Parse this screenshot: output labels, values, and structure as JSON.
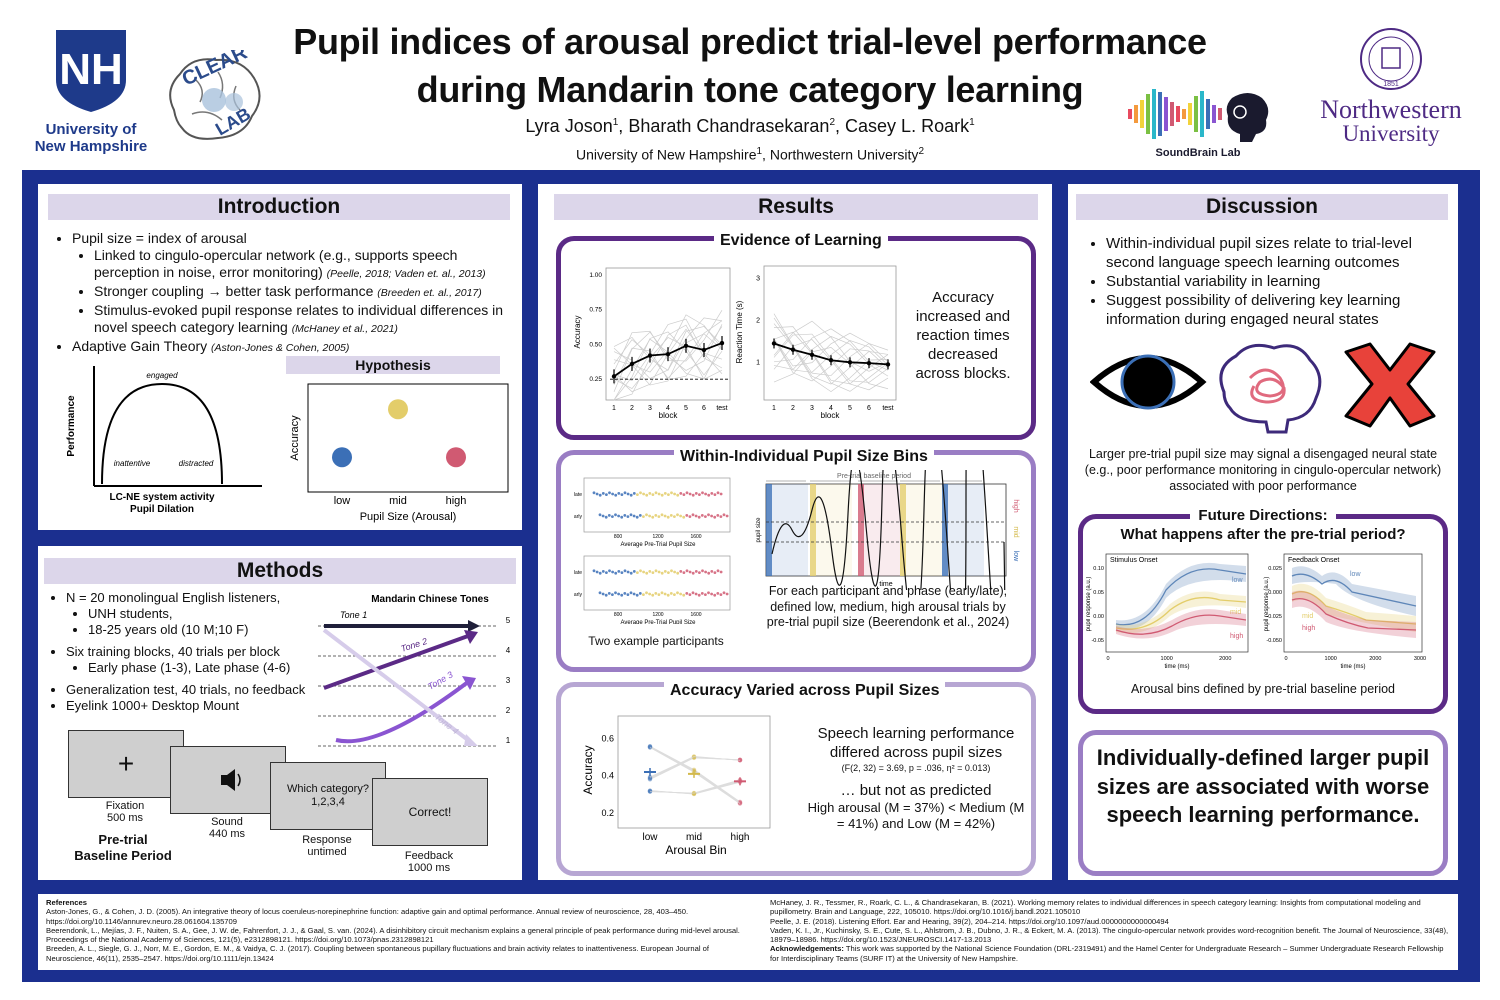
{
  "header": {
    "title_line1": "Pupil indices of arousal predict trial-level performance",
    "title_line2": "during Mandarin tone category learning",
    "authors": [
      {
        "name": "Lyra Joson",
        "sup": "1"
      },
      {
        "name": "Bharath Chandrasekaran",
        "sup": "2"
      },
      {
        "name": "Casey L. Roark",
        "sup": "1"
      }
    ],
    "affiliations": [
      {
        "name": "University of New Hampshire",
        "sup": "1"
      },
      {
        "name": "Northwestern University",
        "sup": "2"
      }
    ],
    "logos": {
      "unh_mark": "NH",
      "unh_name1": "University of",
      "unh_name2": "New Hampshire",
      "clear_lab1": "CLEAR",
      "clear_lab2": "LAB",
      "soundbrain": "SoundBrain Lab",
      "nu_name1": "Northwestern",
      "nu_name2": "University",
      "nu_seal_year": "1851",
      "nu_seal_text": "NORTHWESTERN UNIVERSITY"
    }
  },
  "intro": {
    "title": "Introduction",
    "b1": "Pupil size = index of arousal",
    "b1a": "Linked to cingulo-opercular network (e.g., supports speech perception in noise, error monitoring)",
    "b1a_cite": "(Peelle, 2018; Vaden et. al., 2013)",
    "b1b_pre": "Stronger coupling",
    "b1b_arrow": "→",
    "b1b_post": "better task performance",
    "b1b_cite": "(Breeden et. al., 2017)",
    "b1c": "Stimulus-evoked pupil response relates to individual differences in novel speech category learning",
    "b1c_cite": "(McHaney et al., 2021)",
    "b2": "Adaptive Gain Theory",
    "b2_cite": "(Aston-Jones & Cohen, 2005)",
    "agt": {
      "y": "Performance",
      "x1": "LC-NE system activity",
      "x2": "Pupil Dilation",
      "engaged": "engaged",
      "inattentive": "inattentive",
      "distracted": "distracted"
    },
    "hyp": {
      "title": "Hypothesis",
      "y": "Accuracy",
      "x": "Pupil Size (Arousal)",
      "cats": [
        "low",
        "mid",
        "high"
      ],
      "colors": [
        "#3b6fb6",
        "#e3cd6a",
        "#d05a72"
      ],
      "values": [
        0.3,
        0.8,
        0.3
      ]
    }
  },
  "methods": {
    "title": "Methods",
    "b1": "N = 20 monolingual English listeners,",
    "b1a": "UNH students,",
    "b1b": "18-25 years old (10 M;10 F)",
    "b2": "Six training blocks, 40 trials per block",
    "b2a": "Early phase (1-3), Late phase (4-6)",
    "b3": "Generalization test, 40 trials, no feedback",
    "b4": "Eyelink 1000+ Desktop Mount",
    "tones": {
      "title": "Mandarin Chinese Tones",
      "t1": "Tone 1",
      "t2": "Tone 2",
      "t3": "Tone 3",
      "t4": "Tone 4",
      "levels": [
        "5",
        "4",
        "3",
        "2",
        "1"
      ]
    },
    "trial": {
      "fix_sym": "+",
      "fix_label": "Fixation",
      "fix_time": "500 ms",
      "sound_label": "Sound",
      "sound_time": "440 ms",
      "resp_text1": "Which category?",
      "resp_text2": "1,2,3,4",
      "resp_label": "Response",
      "resp_time": "untimed",
      "fb_text": "Correct!",
      "fb_label": "Feedback",
      "fb_time": "1000 ms",
      "baseline1": "Pre-trial",
      "baseline2": "Baseline Period"
    }
  },
  "results": {
    "title": "Results",
    "learning": {
      "title": "Evidence of Learning",
      "text": "Accuracy increased and reaction times decreased across blocks.",
      "acc": {
        "ylabel": "Accuracy",
        "xlabel": "block",
        "yticks": [
          "0.25",
          "0.50",
          "0.75",
          "1.00"
        ],
        "xticks": [
          "1",
          "2",
          "3",
          "4",
          "5",
          "6",
          "test"
        ],
        "values": [
          0.27,
          0.36,
          0.42,
          0.43,
          0.49,
          0.46,
          0.51
        ],
        "chance": 0.25
      },
      "rt": {
        "ylabel": "Reaction Time (s)",
        "xlabel": "block",
        "yticks": [
          "1",
          "2",
          "3"
        ],
        "xticks": [
          "1",
          "2",
          "3",
          "4",
          "5",
          "6",
          "test"
        ],
        "values": [
          1.45,
          1.3,
          1.18,
          1.05,
          1.0,
          0.98,
          0.95
        ]
      }
    },
    "bins": {
      "title": "Within-Individual Pupil Size Bins",
      "caption_left": "Two example participants",
      "strip_x": "Average Pre-Trial Pupil Size",
      "strip_rows": [
        "late",
        "early"
      ],
      "strip_ticks": [
        "800",
        "1200",
        "1600"
      ],
      "trace_title": "Pre-trial baseline period",
      "trace_y": "pupil size",
      "trace_x": "time",
      "trace_labels": [
        "high",
        "mid",
        "low"
      ],
      "text": "For each participant and phase (early/late), defined low, medium, high arousal trials by pre-trial pupil size (Beerendonk et al., 2024)"
    },
    "acc_bins": {
      "title": "Accuracy Varied across Pupil Sizes",
      "ylabel": "Accuracy",
      "xlabel": "Arousal Bin",
      "cats": [
        "low",
        "mid",
        "high"
      ],
      "yticks": [
        "0.2",
        "0.4",
        "0.6"
      ],
      "values": [
        0.42,
        0.41,
        0.37
      ],
      "text1": "Speech learning performance differed across pupil sizes",
      "stat": "(F(2, 32) = 3.69, p = .036, η² = 0.013)",
      "text2": "… but not as predicted",
      "text3": "High arousal (M = 37%) < Medium (M = 41%) and Low (M = 42%)"
    }
  },
  "discussion": {
    "title": "Discussion",
    "b1": "Within-individual pupil sizes relate to trial-level second language speech learning outcomes",
    "b2": "Substantial variability in learning",
    "b3": "Suggest possibility of delivering key learning information during engaged neural states",
    "icons_caption": "Larger pre-trial pupil size may signal a disengaged neural state (e.g., poor performance monitoring in cingulo-opercular network) associated with poor performance",
    "future": {
      "title1": "Future Directions:",
      "title2": "What happens after the pre-trial period?",
      "left_label": "Stimulus Onset",
      "right_label": "Feedback Onset",
      "ylabel": "pupil response (a.u.)",
      "xlabel": "time (ms)",
      "series": [
        "low",
        "mid",
        "high"
      ],
      "left_xticks": [
        "0",
        "1000",
        "2000"
      ],
      "left_yticks": [
        "0.10",
        "0.05",
        "0.00",
        "-0.05"
      ],
      "right_xticks": [
        "0",
        "1000",
        "2000",
        "3000"
      ],
      "right_yticks": [
        "0.025",
        "0.000",
        "-0.025",
        "-0.050"
      ],
      "caption": "Arousal bins defined by pre-trial baseline period"
    },
    "takeaway": "Individually-defined larger pupil sizes are associated with worse speech learning performance."
  },
  "refs": {
    "heading": "References",
    "left": [
      "Aston-Jones, G., & Cohen, J. D. (2005). An integrative theory of locus coeruleus-norepinephrine function: adaptive gain and optimal performance. Annual review of neuroscience, 28, 403–450. https://doi.org/10.1146/annurev.neuro.28.061604.135709",
      "Beerendonk, L., Mejías, J. F., Nuiten, S. A., Gee, J. W. de, Fahrenfort, J. J., & Gaal, S. van. (2024). A disinhibitory circuit mechanism explains a general principle of peak performance during mid-level arousal. Proceedings of the National Academy of Sciences, 121(5), e2312898121. https://doi.org/10.1073/pnas.2312898121",
      "Breeden, A. L., Siegle, G. J., Norr, M. E., Gordon, E. M., & Vaidya, C. J. (2017). Coupling between spontaneous pupillary fluctuations and brain activity relates to inattentiveness. European Journal of Neuroscience, 46(11), 2535–2547. https://doi.org/10.1111/ejn.13424"
    ],
    "right": [
      "McHaney, J. R., Tessmer, R., Roark, C. L., & Chandrasekaran, B. (2021). Working memory relates to individual differences in speech category learning: Insights from computational modeling and pupillometry. Brain and Language, 222, 105010. https://doi.org/10.1016/j.bandl.2021.105010",
      "Peelle, J. E. (2018). Listening Effort. Ear and Hearing, 39(2), 204–214. https://doi.org/10.1097/aud.0000000000000494",
      "Vaden, K. I., Jr., Kuchinsky, S. E., Cute, S. L., Ahlstrom, J. B., Dubno, J. R., & Eckert, M. A. (2013). The cingulo-opercular network provides word-recognition benefit. The Journal of Neuroscience, 33(48), 18979–18986. https://doi.org/10.1523/JNEUROSCI.1417-13.2013"
    ],
    "ack_label": "Acknowledgements:",
    "ack": "This work was supported by the National Science Foundation (DRL-2319491) and the Hamel Center for Undergraduate Research – Summer Undergraduate Research Fellowship for Interdisciplinary Teams (SURF IT) at the University of New Hampshire."
  }
}
